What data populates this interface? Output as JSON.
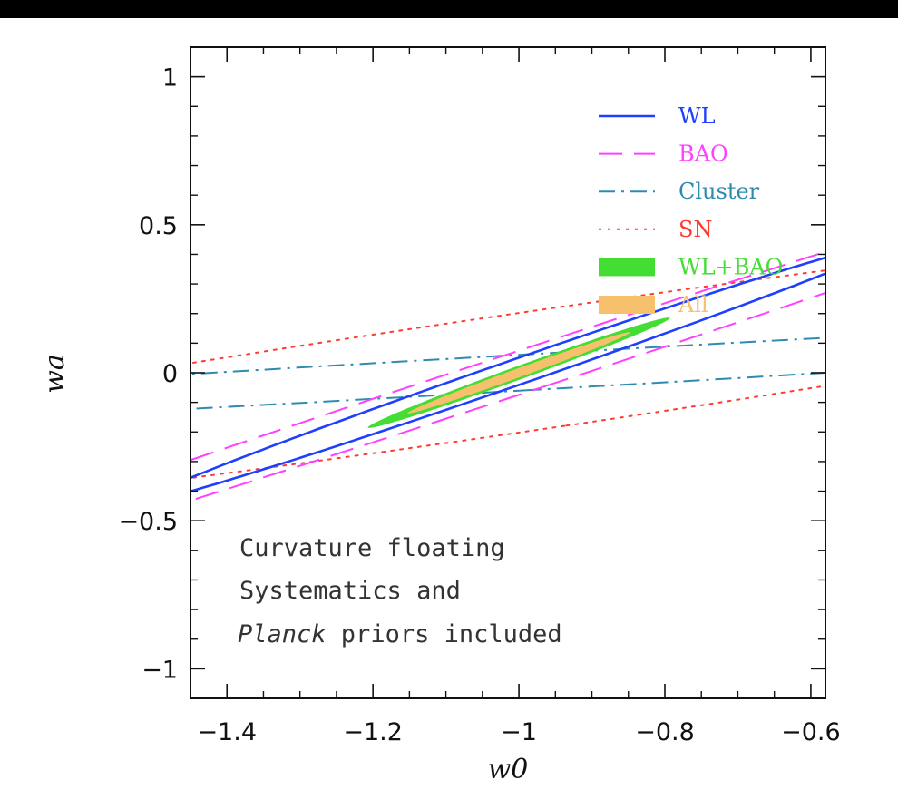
{
  "chart_data": {
    "type": "scatter",
    "subtype": "confidence-ellipses",
    "xlabel": "w0",
    "ylabel": "wa",
    "xlim": [
      -1.45,
      -0.58
    ],
    "ylim": [
      -1.1,
      1.1
    ],
    "xticks": [
      -1.4,
      -1.2,
      -1,
      -0.8,
      -0.6
    ],
    "xtick_labels": [
      "−1.4",
      "−1.2",
      "−1",
      "−0.8",
      "−0.6"
    ],
    "yticks": [
      -1,
      -0.5,
      0,
      0.5,
      1
    ],
    "ytick_labels": [
      "−1",
      "−0.5",
      "0",
      "0.5",
      "1"
    ],
    "legend_position": "top-right",
    "series": [
      {
        "name": "SN",
        "style": "dotted",
        "color": "#ff3b30",
        "fill": false,
        "center": [
          -1.0,
          0.0
        ],
        "semi_axes": [
          0.19,
          1.7
        ],
        "tilt_deg": -70
      },
      {
        "name": "Cluster",
        "style": "dash-dot",
        "color": "#2e8bb0",
        "fill": false,
        "center": [
          -1.0,
          0.0
        ],
        "semi_axes": [
          0.06,
          1.9
        ],
        "tilt_deg": -82
      },
      {
        "name": "BAO",
        "style": "dashed",
        "color": "#ff40ff",
        "fill": false,
        "center": [
          -1.0,
          0.0
        ],
        "semi_axes": [
          0.058,
          1.47
        ],
        "tilt_deg": -51
      },
      {
        "name": "WL",
        "style": "solid",
        "color": "#1f3fff",
        "fill": false,
        "center": [
          -1.0,
          0.005
        ],
        "semi_axes": [
          0.035,
          0.68
        ],
        "tilt_deg": -49.5
      },
      {
        "name": "WL+BAO",
        "style": "filled",
        "color": "#44dd33",
        "fill": true,
        "center": [
          -1.0,
          0.0
        ],
        "semi_axes": [
          0.018,
          0.278
        ],
        "tilt_deg": -48
      },
      {
        "name": "All",
        "style": "filled",
        "color": "#f6c06c",
        "fill": true,
        "center": [
          -1.0,
          0.0
        ],
        "semi_axes": [
          0.012,
          0.205
        ],
        "tilt_deg": -48
      }
    ],
    "legend": [
      {
        "label": "WL",
        "style": "solid",
        "color": "#1f3fff",
        "text_color": "#1f3fff"
      },
      {
        "label": "BAO",
        "style": "dashed",
        "color": "#ff40ff",
        "text_color": "#ff40ff"
      },
      {
        "label": "Cluster",
        "style": "dash-dot",
        "color": "#2e8bb0",
        "text_color": "#2e8bb0"
      },
      {
        "label": "SN",
        "style": "dotted",
        "color": "#ff3b30",
        "text_color": "#ff3b30"
      },
      {
        "label": "WL+BAO",
        "style": "filled",
        "color": "#44dd33",
        "text_color": "#44dd33"
      },
      {
        "label": "All",
        "style": "filled",
        "color": "#f6c06c",
        "text_color": "#f6c06c"
      }
    ],
    "annotation": {
      "line1": "Curvature floating",
      "line2": "Systematics and",
      "line3_italic": "Planck",
      "line3_rest": " priors included"
    }
  }
}
